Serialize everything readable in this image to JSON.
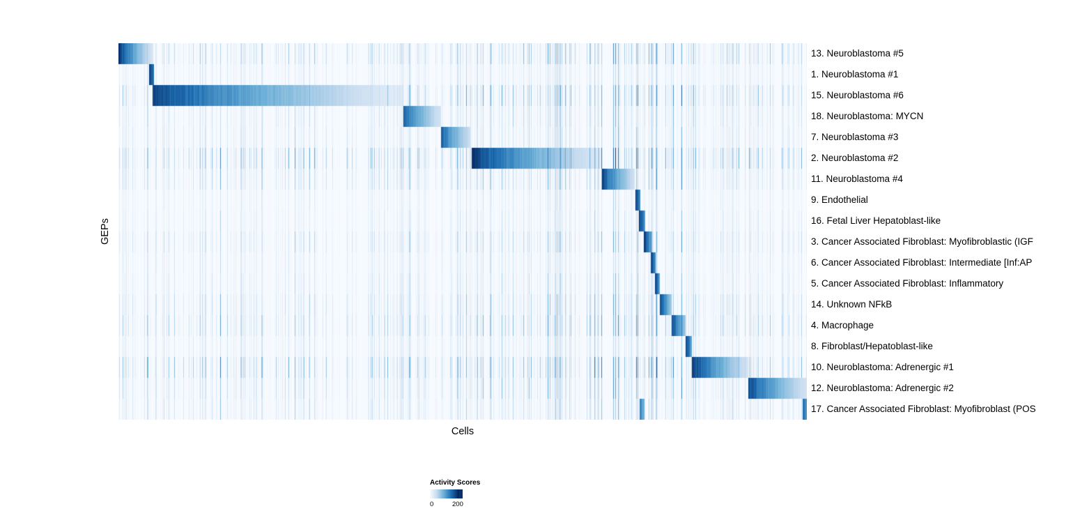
{
  "chart_data": {
    "type": "heatmap",
    "title": "",
    "xlabel": "Cells",
    "ylabel": "GEPs",
    "colorbar": {
      "title": "Activity Scores",
      "min": 0,
      "max": 200,
      "min_label": "0",
      "max_label": "200",
      "colormap": [
        {
          "pos": 0.0,
          "color": "#f7fbff"
        },
        {
          "pos": 0.25,
          "color": "#c6dbef"
        },
        {
          "pos": 0.5,
          "color": "#6baed6"
        },
        {
          "pos": 0.75,
          "color": "#2171b5"
        },
        {
          "pos": 1.0,
          "color": "#08306b"
        }
      ]
    },
    "rows": [
      {
        "label": "13. Neuroblastoma #5",
        "noise": 1.2,
        "blocks": [
          {
            "x0": 0.0,
            "x1": 0.05,
            "v0": 200,
            "v1": 30
          }
        ]
      },
      {
        "label": "1. Neuroblastoma #1",
        "noise": 0.6,
        "blocks": [
          {
            "x0": 0.044,
            "x1": 0.051,
            "v0": 200,
            "v1": 140
          }
        ]
      },
      {
        "label": "15. Neuroblastoma #6",
        "noise": 1.3,
        "blocks": [
          {
            "x0": 0.049,
            "x1": 0.412,
            "v0": 190,
            "v1": 20
          }
        ]
      },
      {
        "label": "18. Neuroblastoma: MYCN",
        "noise": 0.8,
        "blocks": [
          {
            "x0": 0.413,
            "x1": 0.468,
            "v0": 170,
            "v1": 35
          }
        ]
      },
      {
        "label": "7. Neuroblastoma #3",
        "noise": 0.8,
        "blocks": [
          {
            "x0": 0.468,
            "x1": 0.511,
            "v0": 170,
            "v1": 40
          }
        ]
      },
      {
        "label": "2. Neuroblastoma #2",
        "noise": 1.6,
        "blocks": [
          {
            "x0": 0.513,
            "x1": 0.7,
            "v0": 200,
            "v1": 25
          }
        ]
      },
      {
        "label": "11. Neuroblastoma #4",
        "noise": 1.0,
        "blocks": [
          {
            "x0": 0.702,
            "x1": 0.749,
            "v0": 190,
            "v1": 40
          }
        ]
      },
      {
        "label": "9. Endothelial",
        "noise": 0.5,
        "blocks": [
          {
            "x0": 0.751,
            "x1": 0.758,
            "v0": 200,
            "v1": 120
          }
        ]
      },
      {
        "label": "16. Fetal Liver Hepatoblast-like",
        "noise": 0.6,
        "blocks": [
          {
            "x0": 0.756,
            "x1": 0.765,
            "v0": 200,
            "v1": 110
          }
        ]
      },
      {
        "label": "3. Cancer Associated Fibroblast: Myofibroblastic (IGF",
        "noise": 0.9,
        "blocks": [
          {
            "x0": 0.763,
            "x1": 0.775,
            "v0": 200,
            "v1": 100
          }
        ]
      },
      {
        "label": "6. Cancer Associated Fibroblast: Intermediate [Inf:AP",
        "noise": 0.6,
        "blocks": [
          {
            "x0": 0.773,
            "x1": 0.78,
            "v0": 200,
            "v1": 120
          }
        ]
      },
      {
        "label": "5. Cancer Associated Fibroblast: Inflammatory",
        "noise": 0.7,
        "blocks": [
          {
            "x0": 0.779,
            "x1": 0.786,
            "v0": 200,
            "v1": 110
          }
        ]
      },
      {
        "label": "14. Unknown NFkB",
        "noise": 1.0,
        "blocks": [
          {
            "x0": 0.786,
            "x1": 0.803,
            "v0": 190,
            "v1": 70
          }
        ]
      },
      {
        "label": "4. Macrophage",
        "noise": 1.2,
        "blocks": [
          {
            "x0": 0.803,
            "x1": 0.823,
            "v0": 190,
            "v1": 70
          }
        ]
      },
      {
        "label": "8. Fibroblast/Hepatoblast-like",
        "noise": 0.7,
        "blocks": [
          {
            "x0": 0.823,
            "x1": 0.832,
            "v0": 200,
            "v1": 110
          }
        ]
      },
      {
        "label": "10. Neuroblastoma: Adrenergic #1",
        "noise": 1.5,
        "blocks": [
          {
            "x0": 0.832,
            "x1": 0.914,
            "v0": 200,
            "v1": 35
          }
        ]
      },
      {
        "label": "12. Neuroblastoma: Adrenergic #2",
        "noise": 1.0,
        "blocks": [
          {
            "x0": 0.914,
            "x1": 1.0,
            "v0": 185,
            "v1": 35
          }
        ]
      },
      {
        "label": "17. Cancer Associated Fibroblast: Myofibroblast (POS",
        "noise": 0.8,
        "blocks": [
          {
            "x0": 0.757,
            "x1": 0.764,
            "v0": 140,
            "v1": 90
          },
          {
            "x0": 0.993,
            "x1": 1.0,
            "v0": 170,
            "v1": 120
          }
        ]
      }
    ]
  }
}
